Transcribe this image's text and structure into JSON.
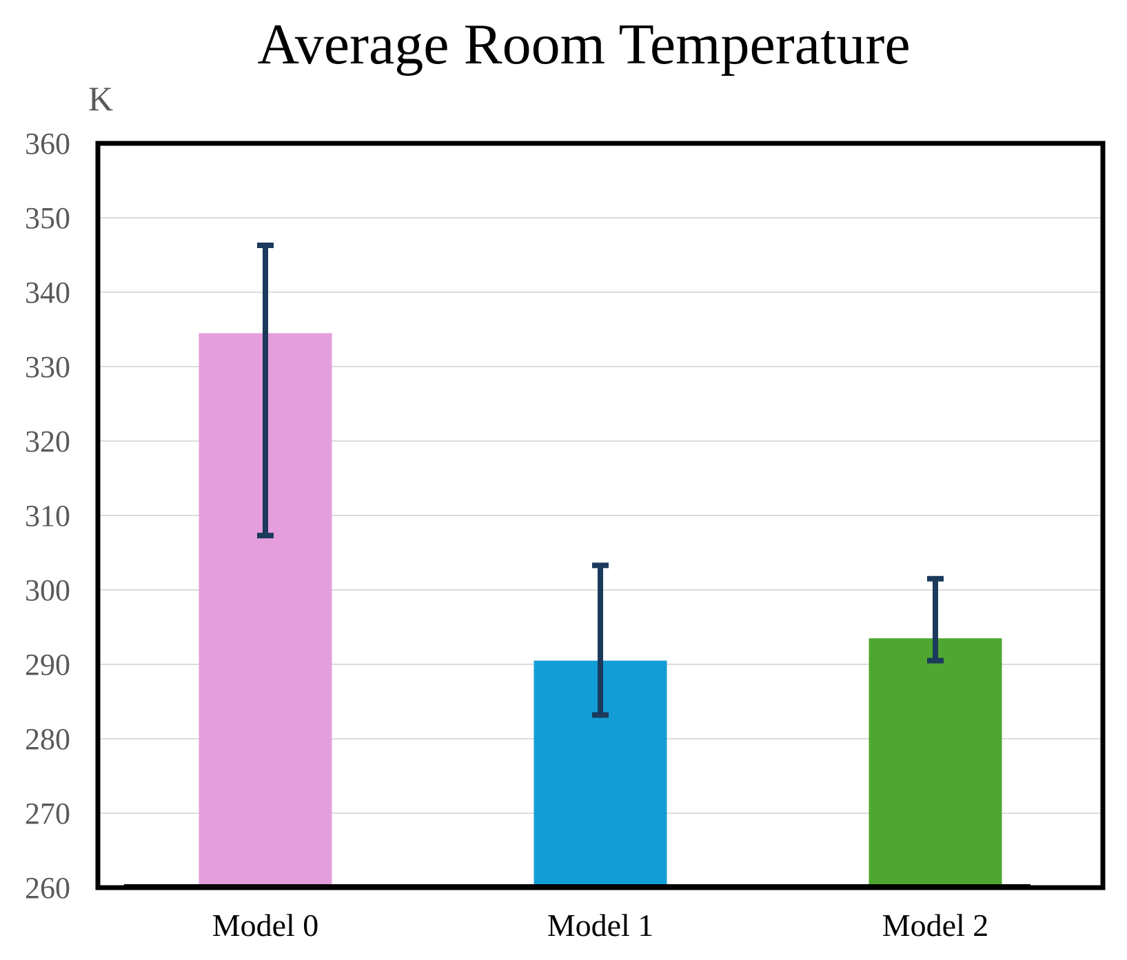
{
  "chart_data": {
    "type": "bar",
    "title": "Average Room Temperature",
    "ylabel": "K",
    "xlabel": "",
    "categories": [
      "Model 0",
      "Model 1",
      "Model 2"
    ],
    "values": [
      334.5,
      290.5,
      293.5
    ],
    "error_low": [
      307.3,
      283.2,
      290.5
    ],
    "error_high": [
      346.3,
      303.3,
      301.5
    ],
    "colors": [
      "#e59edc",
      "#139dd6",
      "#4fa630"
    ],
    "error_bar_color": "#1b3a5c",
    "ylim": [
      260,
      360
    ],
    "yticks": [
      260,
      270,
      280,
      290,
      300,
      310,
      320,
      330,
      340,
      350,
      360
    ],
    "grid": true,
    "legend": "none"
  }
}
